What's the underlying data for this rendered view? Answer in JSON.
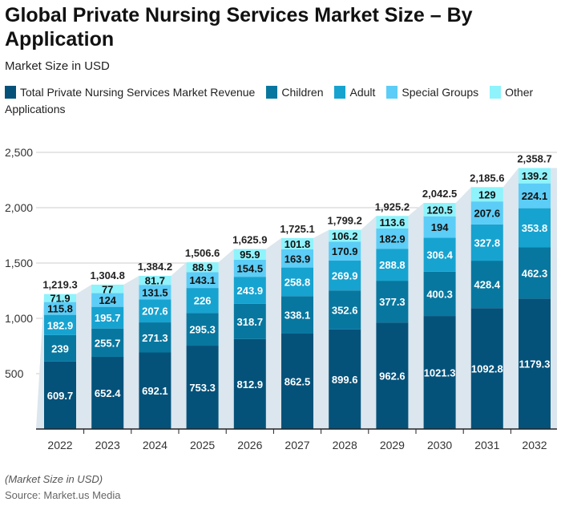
{
  "title": "Global Private Nursing Services Market Size – By Application",
  "subtitle": "Market Size in USD",
  "footnote": "(Market Size in USD)",
  "source": "Source: Market.us Media",
  "chart_data": {
    "type": "bar",
    "stacked": true,
    "categories": [
      "2022",
      "2023",
      "2024",
      "2025",
      "2026",
      "2027",
      "2028",
      "2029",
      "2030",
      "2031",
      "2032"
    ],
    "series": [
      {
        "name": "Total Private Nursing Services Market Revenue",
        "color": "#04527a",
        "values": [
          609.7,
          652.4,
          692.1,
          753.3,
          812.9,
          862.5,
          899.6,
          962.6,
          1021.3,
          1092.8,
          1179.3
        ]
      },
      {
        "name": "Children",
        "color": "#08779f",
        "values": [
          239,
          255.7,
          271.3,
          295.3,
          318.7,
          338.1,
          352.6,
          377.3,
          400.3,
          428.4,
          462.3
        ]
      },
      {
        "name": "Adult",
        "color": "#17a3d0",
        "values": [
          182.9,
          195.7,
          207.6,
          226,
          243.9,
          258.8,
          269.9,
          288.8,
          306.4,
          327.8,
          353.8
        ]
      },
      {
        "name": "Special Groups",
        "color": "#5ccdf6",
        "values": [
          115.8,
          124,
          131.5,
          143.1,
          154.5,
          163.9,
          170.9,
          182.9,
          194,
          207.6,
          224.1
        ]
      },
      {
        "name": "Other Applications",
        "color": "#8ff3fb",
        "values": [
          71.9,
          77,
          81.7,
          88.9,
          95.9,
          101.8,
          106.2,
          113.6,
          120.5,
          129,
          139.2
        ]
      }
    ],
    "totals": [
      "1,219.3",
      "1,304.8",
      "1,384.2",
      "1,506.6",
      "1,625.9",
      "1,725.1",
      "1,799.2",
      "1,925.2",
      "2,042.5",
      "2,185.6",
      "2,358.7"
    ],
    "ylim": [
      0,
      2500
    ],
    "yticks": [
      "500",
      "1,000",
      "1,500",
      "2,000",
      "2,500"
    ],
    "grid": true,
    "legend": "top"
  }
}
